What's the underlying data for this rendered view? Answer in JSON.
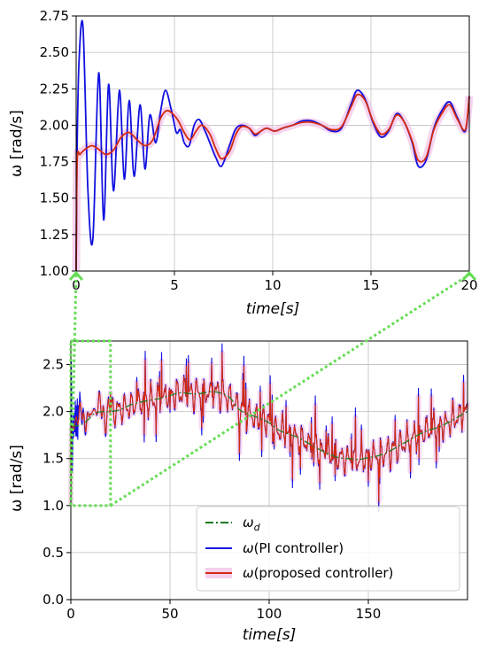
{
  "colors": {
    "reference": "#1a7a1a",
    "pi": "#1010e0",
    "proposed": "#d42a10",
    "proposed_band": "#f4c6ea",
    "zoom": "#66dd55",
    "grid": "#bfbfbf"
  },
  "chart_data": [
    {
      "type": "line",
      "panel": "zoomed",
      "xlabel": "time[s]",
      "ylabel": "ω [rad/s]",
      "xlim": [
        0,
        20
      ],
      "ylim": [
        1.0,
        2.75
      ],
      "x_ticks": [
        0,
        5,
        10,
        15,
        20
      ],
      "x_tick_labels": [
        "0",
        "5",
        "10",
        "15",
        "20"
      ],
      "y_ticks": [
        1.0,
        1.25,
        1.5,
        1.75,
        2.0,
        2.25,
        2.5,
        2.75
      ],
      "y_tick_labels": [
        "1.00",
        "1.25",
        "1.50",
        "1.75",
        "2.00",
        "2.25",
        "2.50",
        "2.75"
      ],
      "grid": true,
      "series": [
        {
          "name": "ω(PI controller)",
          "x": [
            0,
            0.05,
            0.15,
            0.35,
            0.6,
            0.85,
            1.15,
            1.4,
            1.65,
            1.9,
            2.2,
            2.45,
            2.7,
            2.95,
            3.25,
            3.5,
            3.75,
            4.05,
            4.3,
            4.55,
            4.85,
            5.1,
            5.3,
            5.5,
            5.75,
            6.0,
            6.25,
            6.5,
            6.8,
            7.1,
            7.4,
            7.8,
            8.1,
            8.4,
            8.8,
            9.1,
            9.4,
            9.7,
            10.1,
            10.5,
            11.0,
            11.5,
            12.0,
            12.5,
            13.0,
            13.5,
            14.0,
            14.3,
            14.7,
            15.1,
            15.5,
            15.9,
            16.3,
            16.7,
            17.1,
            17.4,
            17.8,
            18.2,
            18.6,
            19.0,
            19.4,
            19.8,
            20.0
          ],
          "y": [
            1.0,
            1.85,
            2.45,
            2.67,
            1.55,
            1.22,
            2.36,
            1.35,
            2.28,
            1.55,
            2.24,
            1.63,
            2.17,
            1.65,
            2.14,
            1.7,
            2.07,
            1.88,
            2.1,
            2.24,
            2.1,
            1.95,
            1.97,
            1.88,
            1.86,
            2.0,
            2.04,
            1.98,
            1.88,
            1.78,
            1.72,
            1.86,
            1.97,
            2.0,
            1.98,
            1.93,
            1.96,
            1.98,
            1.96,
            1.98,
            2.0,
            2.03,
            2.03,
            2.0,
            1.96,
            1.98,
            2.15,
            2.24,
            2.18,
            2.02,
            1.92,
            1.96,
            2.08,
            2.02,
            1.88,
            1.72,
            1.76,
            1.98,
            2.1,
            2.16,
            2.05,
            1.96,
            2.2
          ]
        },
        {
          "name": "ω(proposed controller)",
          "x": [
            0,
            0.05,
            0.2,
            0.5,
            0.8,
            1.1,
            1.5,
            1.9,
            2.3,
            2.7,
            3.1,
            3.5,
            3.9,
            4.3,
            4.6,
            4.9,
            5.2,
            5.5,
            5.8,
            6.1,
            6.4,
            6.8,
            7.1,
            7.4,
            7.8,
            8.1,
            8.4,
            8.8,
            9.1,
            9.4,
            9.7,
            10.1,
            10.5,
            11.0,
            11.5,
            12.0,
            12.5,
            13.0,
            13.5,
            14.0,
            14.3,
            14.7,
            15.1,
            15.5,
            15.9,
            16.3,
            16.7,
            17.1,
            17.4,
            17.8,
            18.2,
            18.6,
            19.0,
            19.4,
            19.8,
            20.0
          ],
          "y": [
            1.0,
            1.75,
            1.8,
            1.84,
            1.86,
            1.84,
            1.8,
            1.83,
            1.92,
            1.95,
            1.9,
            1.86,
            1.9,
            2.05,
            2.1,
            2.08,
            2.03,
            1.95,
            1.9,
            1.96,
            2.0,
            1.94,
            1.84,
            1.77,
            1.82,
            1.93,
            1.99,
            1.98,
            1.94,
            1.96,
            1.98,
            1.96,
            1.98,
            2.0,
            2.02,
            2.02,
            2.0,
            1.97,
            1.99,
            2.13,
            2.21,
            2.17,
            2.03,
            1.94,
            1.97,
            2.07,
            2.02,
            1.89,
            1.76,
            1.78,
            1.97,
            2.08,
            2.14,
            2.04,
            1.97,
            2.2
          ]
        }
      ]
    },
    {
      "type": "line",
      "panel": "full",
      "xlabel": "time[s]",
      "ylabel": "ω [rad/s]",
      "xlim": [
        0,
        200
      ],
      "ylim": [
        0.0,
        2.75
      ],
      "x_ticks": [
        0,
        50,
        100,
        150
      ],
      "x_tick_labels": [
        "0",
        "50",
        "100",
        "150"
      ],
      "y_ticks": [
        0.0,
        0.5,
        1.0,
        1.5,
        2.0,
        2.5
      ],
      "y_tick_labels": [
        "0.0",
        "0.5",
        "1.0",
        "1.5",
        "2.0",
        "2.5"
      ],
      "grid": true,
      "legend_position": "lower right",
      "zoom_box": {
        "x": [
          0,
          20
        ],
        "y": [
          1.0,
          2.75
        ]
      },
      "series": [
        {
          "name": "ω_d",
          "label_main": "ω",
          "label_sub": "d",
          "x": [
            0,
            4,
            8,
            12,
            16,
            20,
            25,
            30,
            35,
            40,
            45,
            50,
            55,
            60,
            65,
            70,
            75,
            80,
            85,
            90,
            95,
            100,
            105,
            110,
            115,
            120,
            125,
            130,
            135,
            140,
            145,
            150,
            155,
            160,
            165,
            170,
            175,
            180,
            185,
            190,
            195,
            200
          ],
          "y": [
            1.85,
            1.85,
            1.9,
            1.98,
            2.0,
            2.0,
            2.02,
            2.07,
            2.1,
            2.12,
            2.14,
            2.17,
            2.2,
            2.19,
            2.19,
            2.21,
            2.2,
            2.15,
            2.02,
            1.97,
            1.93,
            1.88,
            1.8,
            1.76,
            1.72,
            1.66,
            1.6,
            1.55,
            1.51,
            1.5,
            1.49,
            1.51,
            1.53,
            1.57,
            1.63,
            1.69,
            1.75,
            1.8,
            1.83,
            1.88,
            1.94,
            2.0
          ]
        },
        {
          "name": "ω(PI controller)",
          "label_main": "ω",
          "label_sub": "(PI controller)"
        },
        {
          "name": "ω(proposed controller)",
          "label_main": "ω",
          "label_sub": "(proposed controller)"
        }
      ]
    }
  ]
}
